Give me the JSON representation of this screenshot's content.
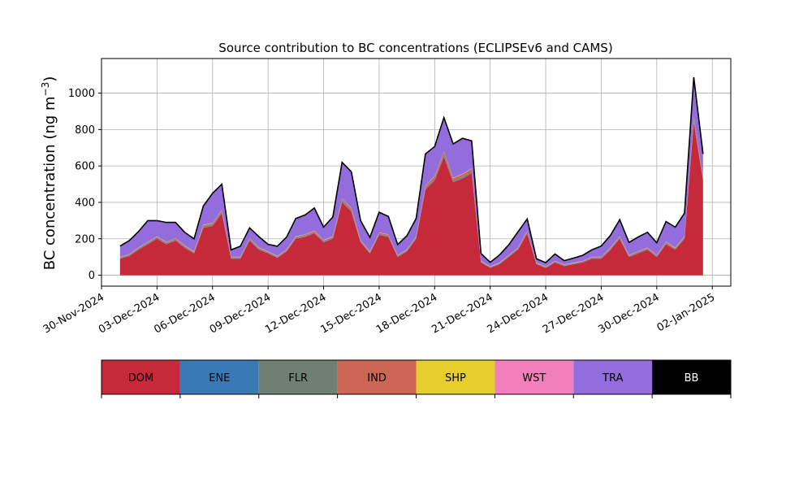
{
  "chart_data": {
    "type": "area",
    "title": "Source contribution to BC concentrations (ECLIPSEv6 and CAMS)",
    "ylabel_main": "BC concentration (ng m",
    "ylabel_sup": "−3",
    "ylabel_close": ")",
    "xlabel": "",
    "ylim": [
      -60,
      1190
    ],
    "xlim": [
      "2024-11-30",
      "2025-01-03"
    ],
    "grid": true,
    "y_ticks": [
      0,
      200,
      400,
      600,
      800,
      1000
    ],
    "x_tick_labels": [
      "30-Nov-2024",
      "03-Dec-2024",
      "06-Dec-2024",
      "09-Dec-2024",
      "12-Dec-2024",
      "15-Dec-2024",
      "18-Dec-2024",
      "21-Dec-2024",
      "24-Dec-2024",
      "27-Dec-2024",
      "30-Dec-2024",
      "02-Jan-2025"
    ],
    "x_tick_dates": [
      "2024-11-30",
      "2024-12-03",
      "2024-12-06",
      "2024-12-09",
      "2024-12-12",
      "2024-12-15",
      "2024-12-18",
      "2024-12-21",
      "2024-12-24",
      "2024-12-27",
      "2024-12-30",
      "2025-01-02"
    ],
    "x": [
      "2024-12-01",
      "2024-12-01 12:00",
      "2024-12-02",
      "2024-12-02 12:00",
      "2024-12-03",
      "2024-12-03 12:00",
      "2024-12-04",
      "2024-12-04 12:00",
      "2024-12-05",
      "2024-12-05 12:00",
      "2024-12-06",
      "2024-12-06 12:00",
      "2024-12-07",
      "2024-12-07 12:00",
      "2024-12-08",
      "2024-12-08 12:00",
      "2024-12-09",
      "2024-12-09 12:00",
      "2024-12-10",
      "2024-12-10 12:00",
      "2024-12-11",
      "2024-12-11 12:00",
      "2024-12-12",
      "2024-12-12 12:00",
      "2024-12-13",
      "2024-12-13 12:00",
      "2024-12-14",
      "2024-12-14 12:00",
      "2024-12-15",
      "2024-12-15 12:00",
      "2024-12-16",
      "2024-12-16 12:00",
      "2024-12-17",
      "2024-12-17 12:00",
      "2024-12-18",
      "2024-12-18 12:00",
      "2024-12-19",
      "2024-12-19 12:00",
      "2024-12-20",
      "2024-12-20 12:00",
      "2024-12-21",
      "2024-12-21 12:00",
      "2024-12-22",
      "2024-12-22 12:00",
      "2024-12-23",
      "2024-12-23 12:00",
      "2024-12-24",
      "2024-12-24 12:00",
      "2024-12-25",
      "2024-12-25 12:00",
      "2024-12-26",
      "2024-12-26 12:00",
      "2024-12-27",
      "2024-12-27 12:00",
      "2024-12-28",
      "2024-12-28 12:00",
      "2024-12-29",
      "2024-12-29 12:00",
      "2024-12-30",
      "2024-12-30 12:00",
      "2024-12-31",
      "2024-12-31 12:00",
      "2025-01-01",
      "2025-01-01 12:00"
    ],
    "series": [
      {
        "name": "DOM",
        "color": "#c62a3a",
        "values": [
          90,
          105,
          140,
          170,
          200,
          170,
          190,
          150,
          120,
          260,
          270,
          340,
          90,
          90,
          190,
          140,
          120,
          95,
          130,
          200,
          210,
          230,
          180,
          200,
          400,
          350,
          180,
          120,
          220,
          210,
          100,
          130,
          200,
          470,
          520,
          650,
          510,
          530,
          560,
          70,
          40,
          60,
          100,
          140,
          230,
          60,
          40,
          70,
          50,
          60,
          70,
          90,
          90,
          140,
          200,
          100,
          120,
          140,
          100,
          170,
          140,
          200,
          840,
          520
        ]
      },
      {
        "name": "ENE",
        "color": "#3a7ab4",
        "values": [
          2,
          2,
          2,
          2,
          2,
          2,
          2,
          2,
          2,
          2,
          2,
          2,
          2,
          2,
          2,
          2,
          2,
          2,
          2,
          2,
          2,
          2,
          2,
          2,
          2,
          2,
          2,
          2,
          2,
          2,
          2,
          2,
          2,
          2,
          2,
          2,
          2,
          2,
          2,
          2,
          2,
          2,
          2,
          2,
          2,
          2,
          2,
          2,
          2,
          2,
          2,
          2,
          2,
          2,
          2,
          2,
          2,
          2,
          2,
          2,
          2,
          2,
          2,
          2
        ]
      },
      {
        "name": "FLR",
        "color": "#6e8070",
        "values": [
          3,
          3,
          4,
          4,
          4,
          4,
          4,
          4,
          3,
          5,
          5,
          6,
          3,
          3,
          4,
          4,
          3,
          3,
          3,
          4,
          4,
          4,
          4,
          4,
          6,
          6,
          4,
          3,
          4,
          4,
          3,
          3,
          4,
          7,
          8,
          10,
          8,
          8,
          8,
          3,
          2,
          2,
          3,
          3,
          4,
          2,
          2,
          2,
          2,
          2,
          2,
          3,
          3,
          3,
          4,
          3,
          3,
          3,
          3,
          4,
          3,
          4,
          10,
          8
        ]
      },
      {
        "name": "IND",
        "color": "#cc6655",
        "values": [
          4,
          4,
          5,
          5,
          6,
          5,
          6,
          5,
          4,
          8,
          8,
          10,
          4,
          4,
          6,
          5,
          4,
          4,
          5,
          6,
          6,
          7,
          6,
          6,
          10,
          9,
          6,
          4,
          7,
          6,
          4,
          5,
          6,
          12,
          14,
          16,
          13,
          14,
          14,
          3,
          2,
          3,
          4,
          5,
          7,
          3,
          2,
          3,
          3,
          3,
          3,
          4,
          4,
          5,
          6,
          4,
          5,
          5,
          4,
          6,
          5,
          6,
          16,
          12
        ]
      },
      {
        "name": "SHP",
        "color": "#e6cf2d",
        "values": [
          1,
          1,
          1,
          1,
          1,
          1,
          1,
          1,
          1,
          1,
          1,
          1,
          1,
          1,
          1,
          1,
          1,
          1,
          1,
          1,
          1,
          1,
          1,
          1,
          1,
          1,
          1,
          1,
          1,
          1,
          1,
          1,
          1,
          1,
          1,
          1,
          1,
          1,
          1,
          1,
          1,
          1,
          1,
          1,
          1,
          1,
          1,
          1,
          1,
          1,
          1,
          1,
          1,
          1,
          1,
          1,
          1,
          1,
          1,
          1,
          1,
          1,
          1,
          1
        ]
      },
      {
        "name": "WST",
        "color": "#f07fbc",
        "values": [
          1,
          1,
          1,
          1,
          1,
          1,
          1,
          1,
          1,
          1,
          1,
          1,
          1,
          1,
          1,
          1,
          1,
          1,
          1,
          1,
          1,
          1,
          1,
          1,
          1,
          1,
          1,
          1,
          1,
          1,
          1,
          1,
          1,
          1,
          1,
          1,
          1,
          1,
          1,
          1,
          1,
          1,
          1,
          1,
          1,
          1,
          1,
          1,
          1,
          1,
          1,
          1,
          1,
          1,
          1,
          1,
          1,
          1,
          1,
          1,
          1,
          1,
          1,
          1
        ]
      },
      {
        "name": "TRA",
        "color": "#936ddc",
        "values": [
          59,
          74,
          87,
          117,
          86,
          107,
          86,
          72,
          69,
          103,
          163,
          140,
          38,
          58,
          56,
          59,
          39,
          53,
          67,
          98,
          107,
          124,
          70,
          106,
          200,
          199,
          106,
          77,
          111,
          99,
          57,
          75,
          98,
          173,
          161,
          186,
          186,
          196,
          152,
          40,
          23,
          42,
          56,
          86,
          64,
          21,
          21,
          38,
          21,
          25,
          30,
          39,
          59,
          67,
          91,
          69,
          78,
          84,
          67,
          111,
          112,
          127,
          217,
          122
        ]
      },
      {
        "name": "BB",
        "color": "#000000",
        "values": [
          0,
          0,
          0,
          0,
          0,
          0,
          0,
          0,
          0,
          0,
          0,
          0,
          0,
          0,
          0,
          0,
          0,
          0,
          0,
          0,
          0,
          0,
          0,
          0,
          0,
          0,
          0,
          0,
          0,
          0,
          0,
          0,
          0,
          0,
          0,
          0,
          0,
          0,
          0,
          0,
          0,
          0,
          0,
          0,
          0,
          0,
          0,
          0,
          0,
          0,
          0,
          0,
          0,
          0,
          0,
          0,
          0,
          0,
          0,
          0,
          0,
          0,
          0,
          0
        ]
      }
    ],
    "legend_placement": "below"
  }
}
